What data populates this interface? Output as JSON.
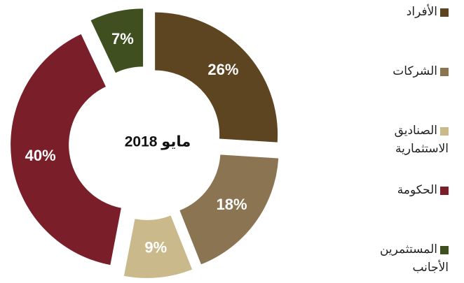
{
  "chart_data": {
    "type": "pie",
    "donut": true,
    "exploded": true,
    "center_label": "2018 مايو",
    "categories": [
      "الأفراد",
      "الشركات",
      "الصناديق الاستثمارية",
      "الحكومة",
      "المستثمرين الأجانب"
    ],
    "values": [
      26,
      18,
      9,
      40,
      7
    ],
    "value_labels": [
      "26%",
      "18%",
      "9%",
      "40%",
      "7%"
    ],
    "colors": [
      "#5e4521",
      "#8b7452",
      "#c9b98b",
      "#7a1f29",
      "#3f4f20"
    ]
  }
}
